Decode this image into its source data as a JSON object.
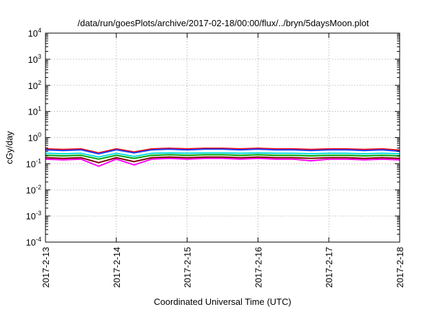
{
  "chart_data": {
    "type": "line",
    "title": "/data/run/goesPlots/archive/2017-02-18/00:00/flux/../bryn/5daysMoon.plot",
    "xlabel": "Coordinated Universal Time (UTC)",
    "ylabel": "cGy/day",
    "yscale": "log",
    "ylim": [
      0.0001,
      10000
    ],
    "xlim": [
      "2017-2-13",
      "2017-2-18"
    ],
    "grid": true,
    "x_ticks": [
      "2017-2-13",
      "2017-2-14",
      "2017-2-15",
      "2017-2-16",
      "2017-2-17",
      "2017-2-18"
    ],
    "y_ticks": [
      {
        "value": 0.0001,
        "base": "10",
        "exp": "-4"
      },
      {
        "value": 0.001,
        "base": "10",
        "exp": "-3"
      },
      {
        "value": 0.01,
        "base": "10",
        "exp": "-2"
      },
      {
        "value": 0.1,
        "base": "10",
        "exp": "-1"
      },
      {
        "value": 1,
        "base": "10",
        "exp": "0"
      },
      {
        "value": 10,
        "base": "10",
        "exp": "1"
      },
      {
        "value": 100,
        "base": "10",
        "exp": "2"
      },
      {
        "value": 1000,
        "base": "10",
        "exp": "3"
      },
      {
        "value": 10000,
        "base": "10",
        "exp": "4"
      }
    ],
    "series_x": [
      "2017-2-13 00:00",
      "2017-2-13 06:00",
      "2017-2-13 12:00",
      "2017-2-13 18:00",
      "2017-2-14 00:00",
      "2017-2-14 06:00",
      "2017-2-14 12:00",
      "2017-2-14 18:00",
      "2017-2-15 00:00",
      "2017-2-15 06:00",
      "2017-2-15 12:00",
      "2017-2-15 18:00",
      "2017-2-16 00:00",
      "2017-2-16 06:00",
      "2017-2-16 12:00",
      "2017-2-16 18:00",
      "2017-2-17 00:00",
      "2017-2-17 06:00",
      "2017-2-17 12:00",
      "2017-2-17 18:00",
      "2017-2-18 00:00"
    ],
    "series": [
      {
        "color": "#ff00ff",
        "values": [
          0.15,
          0.14,
          0.15,
          0.08,
          0.15,
          0.09,
          0.15,
          0.16,
          0.15,
          0.16,
          0.16,
          0.15,
          0.16,
          0.15,
          0.15,
          0.13,
          0.15,
          0.15,
          0.14,
          0.15,
          0.14
        ]
      },
      {
        "color": "#800000",
        "values": [
          0.17,
          0.16,
          0.17,
          0.11,
          0.17,
          0.12,
          0.17,
          0.18,
          0.17,
          0.18,
          0.18,
          0.17,
          0.18,
          0.17,
          0.17,
          0.16,
          0.17,
          0.17,
          0.16,
          0.17,
          0.16
        ]
      },
      {
        "color": "#00a000",
        "values": [
          0.21,
          0.2,
          0.21,
          0.15,
          0.21,
          0.16,
          0.21,
          0.22,
          0.21,
          0.22,
          0.22,
          0.21,
          0.22,
          0.21,
          0.21,
          0.2,
          0.21,
          0.21,
          0.2,
          0.21,
          0.2
        ]
      },
      {
        "color": "#00dddd",
        "values": [
          0.25,
          0.24,
          0.25,
          0.18,
          0.25,
          0.19,
          0.25,
          0.26,
          0.25,
          0.26,
          0.26,
          0.25,
          0.26,
          0.25,
          0.25,
          0.24,
          0.25,
          0.25,
          0.24,
          0.25,
          0.24
        ]
      },
      {
        "color": "#ff0000",
        "values": [
          0.37,
          0.35,
          0.37,
          0.26,
          0.37,
          0.28,
          0.37,
          0.39,
          0.37,
          0.39,
          0.39,
          0.37,
          0.39,
          0.37,
          0.37,
          0.35,
          0.37,
          0.37,
          0.35,
          0.37,
          0.33
        ]
      },
      {
        "color": "#1e3cff",
        "values": [
          0.34,
          0.32,
          0.34,
          0.24,
          0.34,
          0.26,
          0.34,
          0.36,
          0.34,
          0.36,
          0.36,
          0.34,
          0.36,
          0.34,
          0.34,
          0.32,
          0.34,
          0.34,
          0.32,
          0.34,
          0.3
        ]
      }
    ]
  }
}
